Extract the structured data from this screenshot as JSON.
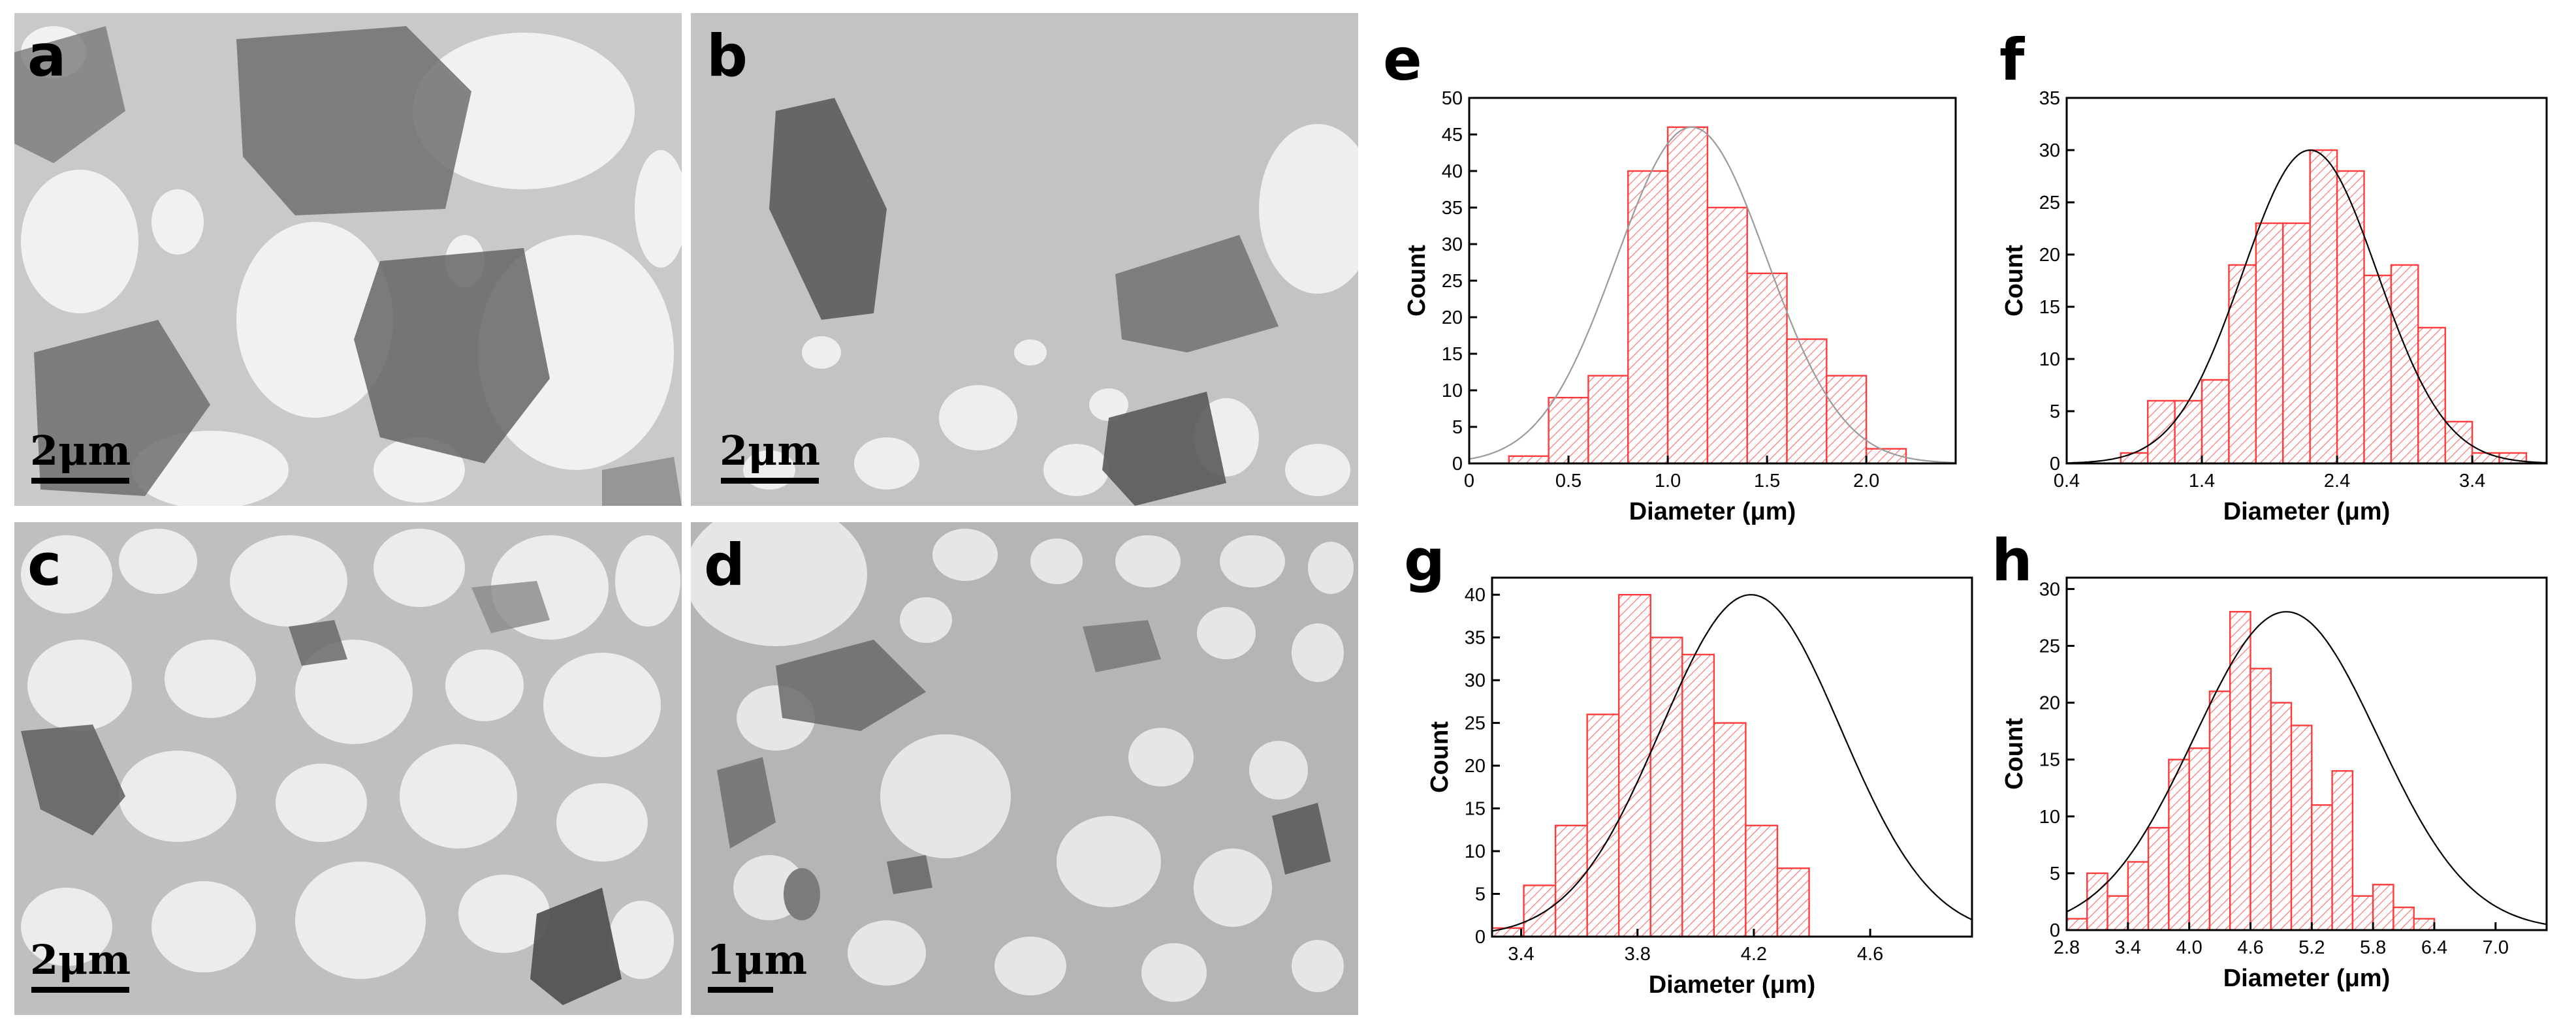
{
  "tem_panels": [
    {
      "id": "a",
      "letter": "a",
      "scale_label": "2μm",
      "bg": "#c9c9c9",
      "hole": "#f1f1f1"
    },
    {
      "id": "b",
      "letter": "b",
      "scale_label": "2μm",
      "bg": "#c3c3c3",
      "hole": "#eeeeee"
    },
    {
      "id": "c",
      "letter": "c",
      "scale_label": "2μm",
      "bg": "#bfbfbf",
      "hole": "#ececec"
    },
    {
      "id": "d",
      "letter": "d",
      "scale_label": "1μm",
      "bg": "#b5b5b5",
      "hole": "#e6e6e6"
    }
  ],
  "colors": {
    "bar_stroke": "#ff3b3b",
    "bar_hatch": "#ff6b6b",
    "fit_line": "#000000",
    "frame": "#000000"
  },
  "chart_data": [
    {
      "letter": "e",
      "type": "bar",
      "xlabel": "Diameter (μm)",
      "ylabel": "Count",
      "xlim": [
        0,
        2.45
      ],
      "ylim": [
        0,
        50
      ],
      "xticks": [
        "0",
        "0.5",
        "1.0",
        "1.5",
        "2.0"
      ],
      "xtick_values": [
        0,
        0.5,
        1.0,
        1.5,
        2.0
      ],
      "yticks": [
        0,
        5,
        10,
        15,
        20,
        25,
        30,
        35,
        40,
        45,
        50
      ],
      "bin_start": 0.2,
      "bin_width": 0.2,
      "values": [
        1,
        9,
        12,
        40,
        46,
        35,
        26,
        17,
        12,
        2
      ],
      "fit": {
        "mean": 1.12,
        "sd": 0.38,
        "peak": 46
      },
      "fit_color": "#9a9a9a"
    },
    {
      "letter": "f",
      "type": "bar",
      "xlabel": "Diameter (μm)",
      "ylabel": "Count",
      "xlim": [
        0.4,
        3.95
      ],
      "ylim": [
        0,
        35
      ],
      "xticks": [
        "0.4",
        "1.4",
        "2.4",
        "3.4"
      ],
      "xtick_values": [
        0.4,
        1.4,
        2.4,
        3.4
      ],
      "yticks": [
        0,
        5,
        10,
        15,
        20,
        25,
        30,
        35
      ],
      "bin_start": 0.6,
      "bin_width": 0.2,
      "values": [
        0,
        1,
        6,
        6,
        8,
        19,
        23,
        23,
        30,
        28,
        18,
        19,
        13,
        4,
        1,
        1
      ],
      "fit": {
        "mean": 2.2,
        "sd": 0.5,
        "peak": 30
      },
      "fit_color": "#000000"
    },
    {
      "letter": "g",
      "type": "bar",
      "xlabel": "Diameter (μm)",
      "ylabel": "Count",
      "xlim": [
        3.3,
        4.95
      ],
      "ylim": [
        0,
        42
      ],
      "xticks": [
        "3.4",
        "3.8",
        "4.2",
        "4.6"
      ],
      "xtick_values": [
        3.4,
        3.8,
        4.2,
        4.6
      ],
      "yticks": [
        0,
        5,
        10,
        15,
        20,
        25,
        30,
        35,
        40
      ],
      "bin_start": 3.3,
      "bin_width": 0.109,
      "values": [
        1,
        6,
        13,
        26,
        40,
        35,
        33,
        25,
        13,
        8
      ],
      "fit": {
        "mean": 4.19,
        "sd": 0.31,
        "peak": 40
      },
      "fit_color": "#000000"
    },
    {
      "letter": "h",
      "type": "bar",
      "xlabel": "Diameter (μm)",
      "ylabel": "Count",
      "xlim": [
        2.8,
        7.5
      ],
      "ylim": [
        0,
        31
      ],
      "xticks": [
        "2.8",
        "3.4",
        "4.0",
        "4.6",
        "5.2",
        "5.8",
        "6.4",
        "7.0"
      ],
      "xtick_values": [
        2.8,
        3.4,
        4.0,
        4.6,
        5.2,
        5.8,
        6.4,
        7.0
      ],
      "yticks": [
        0,
        5,
        10,
        15,
        20,
        25,
        30
      ],
      "bin_start": 2.8,
      "bin_width": 0.2,
      "values": [
        1,
        5,
        3,
        6,
        9,
        15,
        16,
        21,
        28,
        23,
        20,
        18,
        11,
        14,
        3,
        4,
        2,
        1,
        0
      ],
      "fit": {
        "mean": 4.95,
        "sd": 0.9,
        "peak": 28
      },
      "fit_color": "#000000"
    }
  ]
}
